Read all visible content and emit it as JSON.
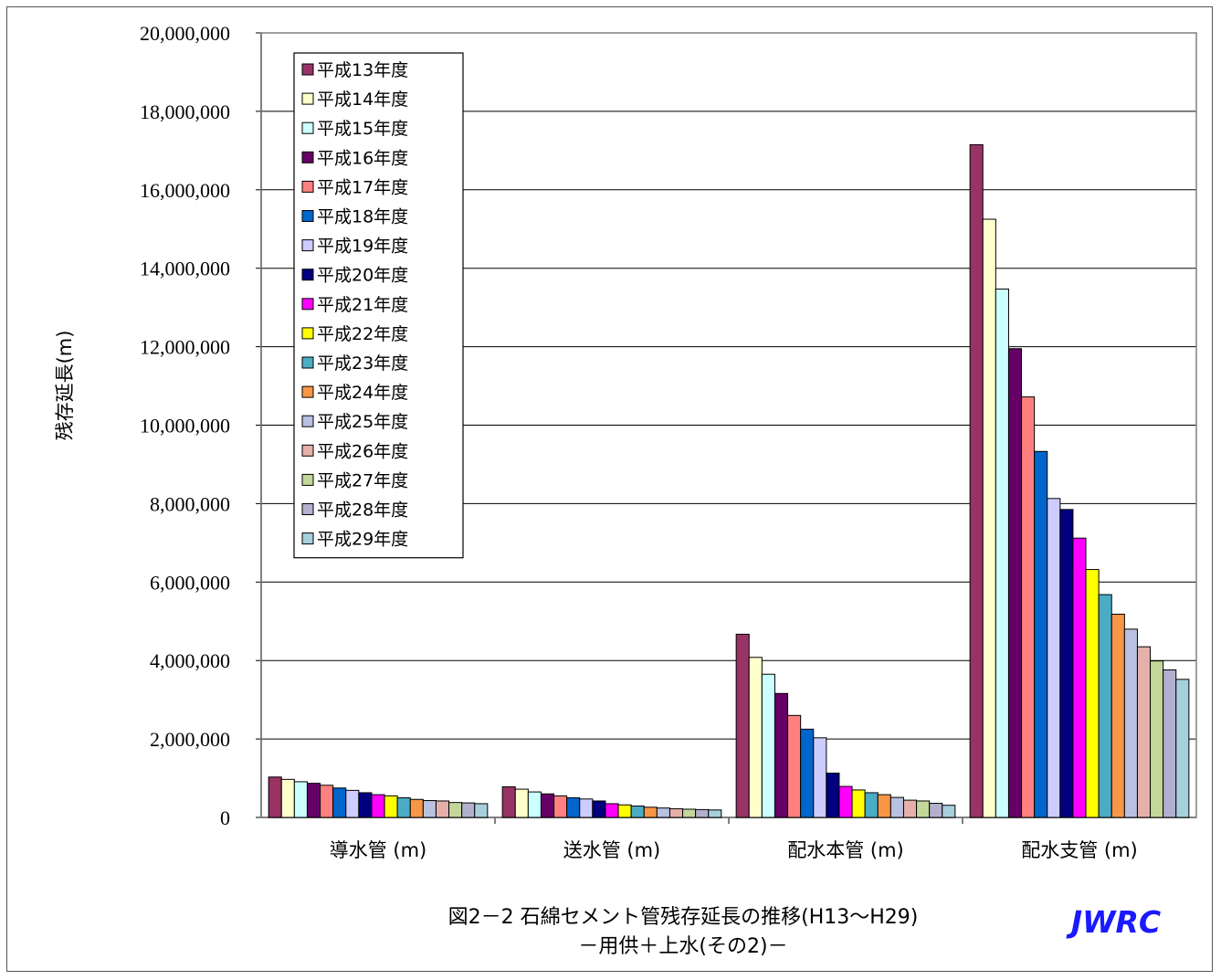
{
  "chart_data": {
    "type": "bar",
    "title": "図2－2 石綿セメント管残存延長の推移(H13～H29)",
    "subtitle": "－用供＋上水(その2)－",
    "brand": "JWRC",
    "ylabel": "残存延長(m)",
    "xlabel": "",
    "ylim": [
      0,
      20000000
    ],
    "yticks": [
      "0",
      "2,000,000",
      "4,000,000",
      "6,000,000",
      "8,000,000",
      "10,000,000",
      "12,000,000",
      "14,000,000",
      "16,000,000",
      "18,000,000",
      "20,000,000"
    ],
    "grid": true,
    "legend_position": "top-left",
    "categories": [
      "導水管 (m)",
      "送水管 (m)",
      "配水本管 (m)",
      "配水支管 (m)"
    ],
    "series": [
      {
        "name": "平成13年度",
        "color": "#993366",
        "values": [
          1030000,
          780000,
          4670000,
          17150000
        ]
      },
      {
        "name": "平成14年度",
        "color": "#ffffcc",
        "values": [
          970000,
          720000,
          4080000,
          15250000
        ]
      },
      {
        "name": "平成15年度",
        "color": "#ccffff",
        "values": [
          910000,
          650000,
          3650000,
          13470000
        ]
      },
      {
        "name": "平成16年度",
        "color": "#660066",
        "values": [
          870000,
          600000,
          3160000,
          11950000
        ]
      },
      {
        "name": "平成17年度",
        "color": "#ff8080",
        "values": [
          820000,
          550000,
          2600000,
          10720000
        ]
      },
      {
        "name": "平成18年度",
        "color": "#0066cc",
        "values": [
          750000,
          500000,
          2250000,
          9330000
        ]
      },
      {
        "name": "平成19年度",
        "color": "#ccccff",
        "values": [
          690000,
          470000,
          2030000,
          8130000
        ]
      },
      {
        "name": "平成20年度",
        "color": "#000080",
        "values": [
          630000,
          420000,
          1130000,
          7850000
        ]
      },
      {
        "name": "平成21年度",
        "color": "#ff00ff",
        "values": [
          580000,
          350000,
          790000,
          7120000
        ]
      },
      {
        "name": "平成22年度",
        "color": "#ffff00",
        "values": [
          550000,
          320000,
          700000,
          6320000
        ]
      },
      {
        "name": "平成23年度",
        "color": "#4bacc6",
        "values": [
          500000,
          290000,
          630000,
          5680000
        ]
      },
      {
        "name": "平成24年度",
        "color": "#f79646",
        "values": [
          460000,
          260000,
          580000,
          5180000
        ]
      },
      {
        "name": "平成25年度",
        "color": "#b8c1e0",
        "values": [
          430000,
          240000,
          510000,
          4800000
        ]
      },
      {
        "name": "平成26年度",
        "color": "#e6b0aa",
        "values": [
          420000,
          220000,
          440000,
          4350000
        ]
      },
      {
        "name": "平成27年度",
        "color": "#c4d79b",
        "values": [
          380000,
          210000,
          420000,
          3990000
        ]
      },
      {
        "name": "平成28年度",
        "color": "#b3b0cf",
        "values": [
          370000,
          200000,
          360000,
          3760000
        ]
      },
      {
        "name": "平成29年度",
        "color": "#a8cfdc",
        "values": [
          350000,
          190000,
          310000,
          3520000
        ]
      }
    ]
  }
}
